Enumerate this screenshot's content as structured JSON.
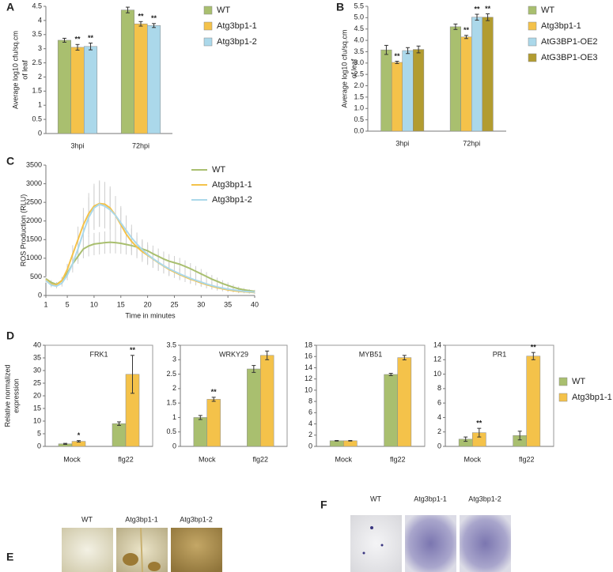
{
  "chart_data": [
    {
      "type": "bar",
      "panel": "A",
      "y_label": [
        "Average log10 cfu/sq.cm",
        "of leaf"
      ],
      "categories": [
        "3hpi",
        "72hpi"
      ],
      "series": [
        {
          "name": "WT",
          "color": "#a9bf6f",
          "values": [
            3.3,
            4.37
          ],
          "errors": [
            0.07,
            0.1
          ],
          "significance": [
            null,
            null
          ]
        },
        {
          "name": "Atg3bp1-1",
          "color": "#f4c24a",
          "values": [
            3.05,
            3.88
          ],
          "errors": [
            0.1,
            0.08
          ],
          "significance": [
            "**",
            "**"
          ]
        },
        {
          "name": "Atg3bp1-2",
          "color": "#abd8ea",
          "values": [
            3.08,
            3.82
          ],
          "errors": [
            0.12,
            0.07
          ],
          "significance": [
            "**",
            "**"
          ]
        }
      ],
      "ylim": [
        0,
        4.5
      ],
      "yticks": [
        0,
        0.5,
        1,
        1.5,
        2,
        2.5,
        3,
        3.5,
        4,
        4.5
      ]
    },
    {
      "type": "bar",
      "panel": "B",
      "y_label": [
        "Average log10 cfu/sq.cm",
        "of leaf"
      ],
      "categories": [
        "3hpi",
        "72hpi"
      ],
      "series": [
        {
          "name": "WT",
          "color": "#a9bf6f",
          "values": [
            3.58,
            4.6
          ],
          "errors": [
            0.2,
            0.12
          ],
          "significance": [
            null,
            null
          ]
        },
        {
          "name": "Atg3bp1-1",
          "color": "#f4c24a",
          "values": [
            3.03,
            4.15
          ],
          "errors": [
            0.05,
            0.07
          ],
          "significance": [
            "**",
            "**"
          ]
        },
        {
          "name": "AtG3BP1-OE2",
          "color": "#abd8ea",
          "values": [
            3.55,
            5.02
          ],
          "errors": [
            0.13,
            0.13
          ],
          "significance": [
            null,
            "**"
          ]
        },
        {
          "name": "AtG3BP1-OE3",
          "color": "#b29c30",
          "values": [
            3.6,
            5.02
          ],
          "errors": [
            0.15,
            0.15
          ],
          "significance": [
            null,
            "**"
          ]
        }
      ],
      "ylim": [
        0,
        5.5
      ],
      "yticks": [
        {
          "value": 0,
          "label": "0.0"
        },
        0.5,
        {
          "value": 1,
          "label": "1.0"
        },
        1.5,
        {
          "value": 2,
          "label": "2.0"
        },
        2.5,
        {
          "value": 3,
          "label": "3.0"
        },
        3.5,
        {
          "value": 4,
          "label": "4.0"
        },
        4.5,
        {
          "value": 5,
          "label": "5.0"
        },
        5.5
      ]
    },
    {
      "type": "line",
      "panel": "C",
      "y_label": [
        "ROS Production (RLU)"
      ],
      "x_label": "Time in minutes",
      "x": [
        1,
        2,
        3,
        4,
        5,
        6,
        7,
        8,
        9,
        10,
        11,
        12,
        13,
        14,
        15,
        16,
        17,
        18,
        19,
        20,
        21,
        22,
        23,
        24,
        25,
        26,
        27,
        28,
        29,
        30,
        31,
        32,
        33,
        34,
        35,
        36,
        37,
        38,
        39,
        40
      ],
      "series": [
        {
          "name": "WT",
          "color": "#a9bf6f",
          "values": [
            450,
            350,
            300,
            400,
            600,
            850,
            1050,
            1250,
            1330,
            1380,
            1400,
            1420,
            1430,
            1420,
            1400,
            1370,
            1340,
            1300,
            1250,
            1200,
            1120,
            1050,
            980,
            920,
            880,
            840,
            780,
            720,
            650,
            580,
            510,
            440,
            380,
            320,
            270,
            220,
            180,
            150,
            130,
            110
          ],
          "errors": [
            60,
            60,
            60,
            80,
            100,
            150,
            200,
            250,
            280,
            300,
            300,
            300,
            300,
            290,
            280,
            270,
            260,
            250,
            240,
            230,
            220,
            210,
            200,
            190,
            180,
            170,
            160,
            150,
            140,
            130,
            120,
            110,
            100,
            90,
            80,
            70,
            60,
            50,
            40,
            40
          ]
        },
        {
          "name": "Atg3bp1-1",
          "color": "#f4c24a",
          "values": [
            420,
            300,
            280,
            400,
            700,
            1100,
            1500,
            1900,
            2200,
            2400,
            2470,
            2450,
            2350,
            2150,
            1900,
            1650,
            1450,
            1300,
            1180,
            1080,
            980,
            880,
            790,
            700,
            630,
            560,
            500,
            440,
            390,
            340,
            290,
            250,
            210,
            180,
            150,
            130,
            110,
            100,
            90,
            80
          ],
          "errors": [
            60,
            60,
            60,
            100,
            150,
            250,
            350,
            450,
            550,
            600,
            620,
            600,
            580,
            520,
            450,
            400,
            350,
            300,
            280,
            260,
            240,
            220,
            200,
            180,
            160,
            150,
            140,
            130,
            120,
            110,
            100,
            90,
            80,
            70,
            60,
            50,
            50,
            40,
            40,
            40
          ]
        },
        {
          "name": "Atg3bp1-2",
          "color": "#abd8ea",
          "values": [
            400,
            280,
            250,
            330,
            550,
            850,
            1250,
            1700,
            2100,
            2350,
            2450,
            2400,
            2300,
            2150,
            1950,
            1750,
            1550,
            1380,
            1230,
            1100,
            990,
            890,
            800,
            720,
            650,
            580,
            520,
            460,
            410,
            360,
            310,
            270,
            230,
            200,
            170,
            150,
            130,
            110,
            100,
            90
          ],
          "errors": [
            60,
            60,
            60,
            90,
            140,
            230,
            330,
            430,
            530,
            590,
            610,
            600,
            570,
            510,
            450,
            400,
            350,
            310,
            280,
            260,
            240,
            220,
            200,
            180,
            160,
            150,
            140,
            130,
            120,
            110,
            100,
            90,
            80,
            70,
            60,
            50,
            50,
            40,
            40,
            40
          ]
        }
      ],
      "xlim": [
        1,
        40
      ],
      "xticks": [
        1,
        5,
        10,
        15,
        20,
        25,
        30,
        35,
        40
      ],
      "ylim": [
        0,
        3500
      ],
      "yticks": [
        0,
        500,
        1000,
        1500,
        2000,
        2500,
        3000,
        3500
      ]
    },
    {
      "type": "bar",
      "panel": "D",
      "title": "FRK1",
      "y_label": [
        "Relative normalized",
        "expression"
      ],
      "categories": [
        "Mock",
        "flg22"
      ],
      "series": [
        {
          "name": "WT",
          "color": "#a9bf6f",
          "values": [
            1,
            9
          ],
          "errors": [
            0.2,
            0.7
          ],
          "significance": [
            null,
            null
          ]
        },
        {
          "name": "Atg3bp1-1",
          "color": "#f4c24a",
          "values": [
            2,
            28.5
          ],
          "errors": [
            0.3,
            7.5
          ],
          "significance": [
            "*",
            "**"
          ]
        }
      ],
      "ylim": [
        0,
        40
      ],
      "yticks": [
        0,
        5,
        10,
        15,
        20,
        25,
        30,
        35,
        40
      ]
    },
    {
      "type": "bar",
      "title": "WRKY29",
      "categories": [
        "Mock",
        "flg22"
      ],
      "series": [
        {
          "color": "#a9bf6f",
          "values": [
            1,
            2.68
          ],
          "errors": [
            0.07,
            0.12
          ],
          "significance": [
            null,
            null
          ]
        },
        {
          "color": "#f4c24a",
          "values": [
            1.63,
            3.15
          ],
          "errors": [
            0.07,
            0.15
          ],
          "significance": [
            "**",
            null
          ]
        }
      ],
      "ylim": [
        0,
        3.5
      ],
      "yticks": [
        0,
        0.5,
        1,
        1.5,
        2,
        2.5,
        3,
        3.5
      ]
    },
    {
      "type": "bar",
      "title": "MYB51",
      "categories": [
        "Mock",
        "flg22"
      ],
      "series": [
        {
          "color": "#a9bf6f",
          "values": [
            1,
            12.8
          ],
          "errors": [
            0.05,
            0.2
          ],
          "significance": [
            null,
            null
          ]
        },
        {
          "color": "#f4c24a",
          "values": [
            1,
            15.8
          ],
          "errors": [
            0.05,
            0.4
          ],
          "significance": [
            null,
            null
          ]
        }
      ],
      "ylim": [
        0,
        18
      ],
      "yticks": [
        0,
        2,
        4,
        6,
        8,
        10,
        12,
        14,
        16,
        18
      ]
    },
    {
      "type": "bar",
      "title": "PR1",
      "categories": [
        "Mock",
        "flg22"
      ],
      "series": [
        {
          "color": "#a9bf6f",
          "values": [
            1,
            1.5
          ],
          "errors": [
            0.3,
            0.6
          ],
          "significance": [
            null,
            null
          ]
        },
        {
          "color": "#f4c24a",
          "values": [
            1.9,
            12.5
          ],
          "errors": [
            0.6,
            0.5
          ],
          "significance": [
            "**",
            "**"
          ]
        }
      ],
      "ylim": [
        0,
        14
      ],
      "yticks": [
        0,
        2,
        4,
        6,
        8,
        10,
        12,
        14
      ]
    }
  ],
  "images": [
    {
      "panel": "E",
      "labels": [
        "WT",
        "Atg3bp1-1",
        "Atg3bp1-2"
      ]
    },
    {
      "panel": "F",
      "labels": [
        "WT",
        "Atg3bp1-1",
        "Atg3bp1-2"
      ]
    }
  ]
}
